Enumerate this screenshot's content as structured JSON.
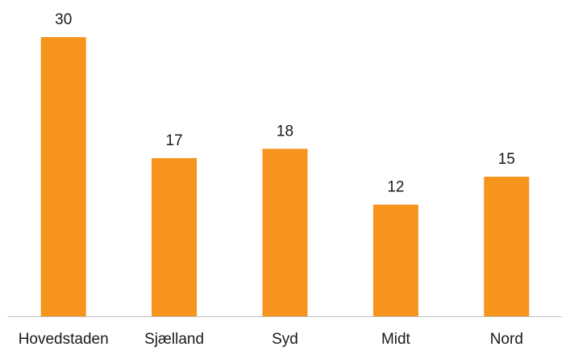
{
  "chart_data": {
    "type": "bar",
    "categories": [
      "Hovedstaden",
      "Sjælland",
      "Syd",
      "Midt",
      "Nord"
    ],
    "values": [
      30,
      17,
      18,
      12,
      15
    ],
    "data_labels": [
      "30",
      "17",
      "18",
      "12",
      "15"
    ],
    "title": "",
    "xlabel": "",
    "ylabel": "",
    "ylim": [
      0,
      30
    ],
    "grid": false,
    "legend": "none",
    "bar_color": "#F7941D",
    "axis_color": "#BFBFBF"
  }
}
